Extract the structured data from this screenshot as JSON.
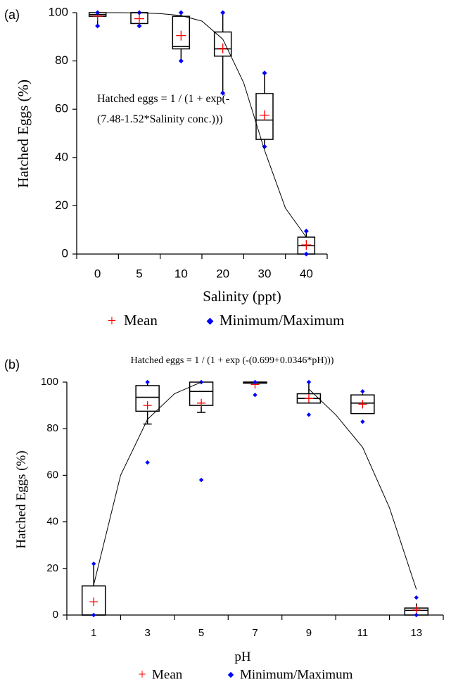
{
  "colors": {
    "mean": "#ff0000",
    "minmax": "#0000ff",
    "box": "#000000"
  },
  "chart_data": [
    {
      "type": "box",
      "panel_label": "(a)",
      "title": "",
      "equation": [
        "Hatched eggs = 1 / (1 + exp(-",
        "(7.48-1.52*Salinity conc.)))"
      ],
      "xlabel": "Salinity (ppt)",
      "ylabel": "Hatched Eggs (%)",
      "ylim": [
        0,
        100
      ],
      "yticks": [
        0,
        20,
        40,
        60,
        80,
        100
      ],
      "categories": [
        "0",
        "5",
        "10",
        "20",
        "30",
        "40"
      ],
      "boxes": [
        {
          "min": 94.5,
          "q1": 98.5,
          "median": 99.2,
          "q3": 100,
          "max": 100,
          "mean": 98.6
        },
        {
          "min": 94.5,
          "q1": 95.5,
          "median": 100,
          "q3": 100,
          "max": 100,
          "mean": 97.5
        },
        {
          "min": 80,
          "q1": 85,
          "median": 86,
          "q3": 98.5,
          "max": 100,
          "mean": 90.5
        },
        {
          "min": 66.7,
          "q1": 82,
          "median": 85,
          "q3": 92,
          "max": 100,
          "mean": 85.2
        },
        {
          "min": 44.5,
          "q1": 47.5,
          "median": 55.5,
          "q3": 66.5,
          "max": 75,
          "mean": 57.5
        },
        {
          "min": 0,
          "q1": 0,
          "median": 3.5,
          "q3": 7,
          "max": 9.5,
          "mean": 3.8
        }
      ],
      "fit_curve": [
        [
          0,
          100
        ],
        [
          1,
          100
        ],
        [
          2,
          99.9
        ],
        [
          3,
          99.6
        ],
        [
          4,
          98.8
        ],
        [
          5,
          96.5
        ],
        [
          6,
          89
        ],
        [
          7,
          71
        ],
        [
          8,
          43
        ],
        [
          9,
          19
        ],
        [
          10,
          7
        ]
      ],
      "legend": {
        "mean": "Mean",
        "minmax": "Minimum/Maximum"
      }
    },
    {
      "type": "box",
      "panel_label": "(b)",
      "title": "",
      "equation": [
        "Hatched eggs = 1 / (1 + exp (-(0.699+0.0346*pH)))"
      ],
      "xlabel": "pH",
      "ylabel": "Hatched Eggs (%)",
      "ylim": [
        0,
        100
      ],
      "yticks": [
        0,
        20,
        40,
        60,
        80,
        100
      ],
      "categories": [
        "1",
        "3",
        "5",
        "7",
        "9",
        "11",
        "13"
      ],
      "boxes": [
        {
          "min": 0,
          "q1": 0,
          "median": 0,
          "q3": 12.5,
          "max": 22,
          "mean": 5.7
        },
        {
          "min": 65.5,
          "q1": 87.5,
          "median": 93.5,
          "q3": 98.5,
          "max": 100,
          "mean": 90
        },
        {
          "min": 58,
          "q1": 90,
          "median": 96,
          "q3": 100,
          "max": 100,
          "mean": 91
        },
        {
          "min": 94.5,
          "q1": 100,
          "median": 100,
          "q3": 100,
          "max": 100,
          "mean": 99
        },
        {
          "min": 86,
          "q1": 91,
          "median": 93,
          "q3": 95,
          "max": 100,
          "mean": 93
        },
        {
          "min": 83,
          "q1": 86.5,
          "median": 91,
          "q3": 94.5,
          "max": 96,
          "mean": 90.5
        },
        {
          "min": 0,
          "q1": 0,
          "median": 2,
          "q3": 3,
          "max": 7.5,
          "mean": 2.2
        }
      ],
      "whiskers": [
        {
          "low": 0,
          "high": 22
        },
        {
          "low": 82,
          "high": 100
        },
        {
          "low": 87,
          "high": 100
        },
        {
          "low": 100,
          "high": 100
        },
        {
          "low": 91,
          "high": 100
        },
        {
          "low": 86.5,
          "high": 95
        },
        {
          "low": 0,
          "high": 5
        }
      ],
      "fit_curve_left": [
        [
          1,
          13
        ],
        [
          2,
          60
        ],
        [
          3,
          84
        ],
        [
          4,
          95
        ],
        [
          5,
          100
        ]
      ],
      "fit_curve_right": [
        [
          9,
          97
        ],
        [
          10,
          86
        ],
        [
          11,
          72
        ],
        [
          12,
          46
        ],
        [
          13,
          11
        ]
      ],
      "legend": {
        "mean": "Mean",
        "minmax": "Minimum/Maximum"
      }
    }
  ]
}
